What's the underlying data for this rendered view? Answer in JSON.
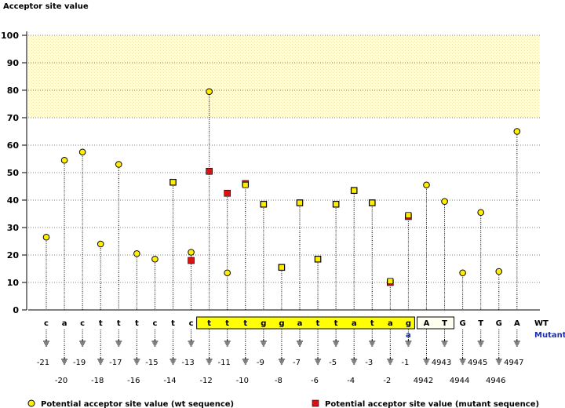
{
  "chart_data": {
    "type": "scatter",
    "ylabel": "Acceptor site value",
    "ylim": [
      0,
      100
    ],
    "yticks": [
      0,
      10,
      20,
      30,
      40,
      50,
      60,
      70,
      80,
      90,
      100
    ],
    "highlight_band": [
      70,
      100
    ],
    "grid": "horizontal dashed",
    "positions": [
      {
        "wt": "c",
        "label": "-21",
        "wt_value": 26.5,
        "mut_value": null
      },
      {
        "wt": "a",
        "label": "-20",
        "wt_value": 54.5,
        "mut_value": null
      },
      {
        "wt": "c",
        "label": "-19",
        "wt_value": 57.5,
        "mut_value": null
      },
      {
        "wt": "t",
        "label": "-18",
        "wt_value": 24.0,
        "mut_value": null
      },
      {
        "wt": "t",
        "label": "-17",
        "wt_value": 53.0,
        "mut_value": null
      },
      {
        "wt": "t",
        "label": "-16",
        "wt_value": 20.5,
        "mut_value": null
      },
      {
        "wt": "c",
        "label": "-15",
        "wt_value": 18.5,
        "mut_value": null
      },
      {
        "wt": "t",
        "label": "-14",
        "wt_value": 46.5,
        "mut_value": 46.5
      },
      {
        "wt": "c",
        "label": "-13",
        "wt_value": 21.0,
        "mut_value": 18.0
      },
      {
        "wt": "t",
        "label": "-12",
        "wt_value": 79.5,
        "mut_value": 50.5
      },
      {
        "wt": "t",
        "label": "-11",
        "wt_value": 13.5,
        "mut_value": 42.5
      },
      {
        "wt": "t",
        "label": "-10",
        "wt_value": 45.5,
        "mut_value": 46.0
      },
      {
        "wt": "g",
        "label": "-9",
        "wt_value": 38.5,
        "mut_value": 38.5
      },
      {
        "wt": "g",
        "label": "-8",
        "wt_value": 15.5,
        "mut_value": 15.5
      },
      {
        "wt": "a",
        "label": "-7",
        "wt_value": 39.0,
        "mut_value": 39.0
      },
      {
        "wt": "t",
        "label": "-6",
        "wt_value": 18.5,
        "mut_value": 18.5
      },
      {
        "wt": "t",
        "label": "-5",
        "wt_value": 38.5,
        "mut_value": 38.5
      },
      {
        "wt": "a",
        "label": "-4",
        "wt_value": 43.5,
        "mut_value": 43.5
      },
      {
        "wt": "t",
        "label": "-3",
        "wt_value": 39.0,
        "mut_value": 39.0
      },
      {
        "wt": "a",
        "label": "-2",
        "wt_value": 10.5,
        "mut_value": 10.0
      },
      {
        "wt": "g",
        "label": "-1",
        "wt_value": 34.5,
        "mut_value": 34.0
      },
      {
        "wt": "A",
        "label": "4942",
        "wt_value": 45.5,
        "mut_value": null
      },
      {
        "wt": "T",
        "label": "4943",
        "wt_value": 39.5,
        "mut_value": null
      },
      {
        "wt": "G",
        "label": "4944",
        "wt_value": 13.5,
        "mut_value": null
      },
      {
        "wt": "T",
        "label": "4945",
        "wt_value": 35.5,
        "mut_value": null
      },
      {
        "wt": "G",
        "label": "4946",
        "wt_value": 14.0,
        "mut_value": null
      },
      {
        "wt": "A",
        "label": "4947",
        "wt_value": 65.0,
        "mut_value": null
      }
    ],
    "mutant_base": {
      "index": 20,
      "base": "a"
    },
    "yellow_box_range": [
      9,
      20
    ],
    "white_box_range": [
      21,
      22
    ],
    "row_labels": {
      "wt": "WT",
      "mutant": "Mutant"
    },
    "legend": [
      {
        "label": "Potential acceptor site value (wt sequence)",
        "marker": "circle"
      },
      {
        "label": "Potential acceptor site value (mutant sequence)",
        "marker": "square"
      }
    ],
    "colors": {
      "wt_marker": "#ffee00",
      "mut_marker": "#dd1111",
      "band": "#fffad0",
      "box": "#ffff00",
      "mutant_text": "#1a2fb8",
      "grid": "#000000"
    }
  }
}
